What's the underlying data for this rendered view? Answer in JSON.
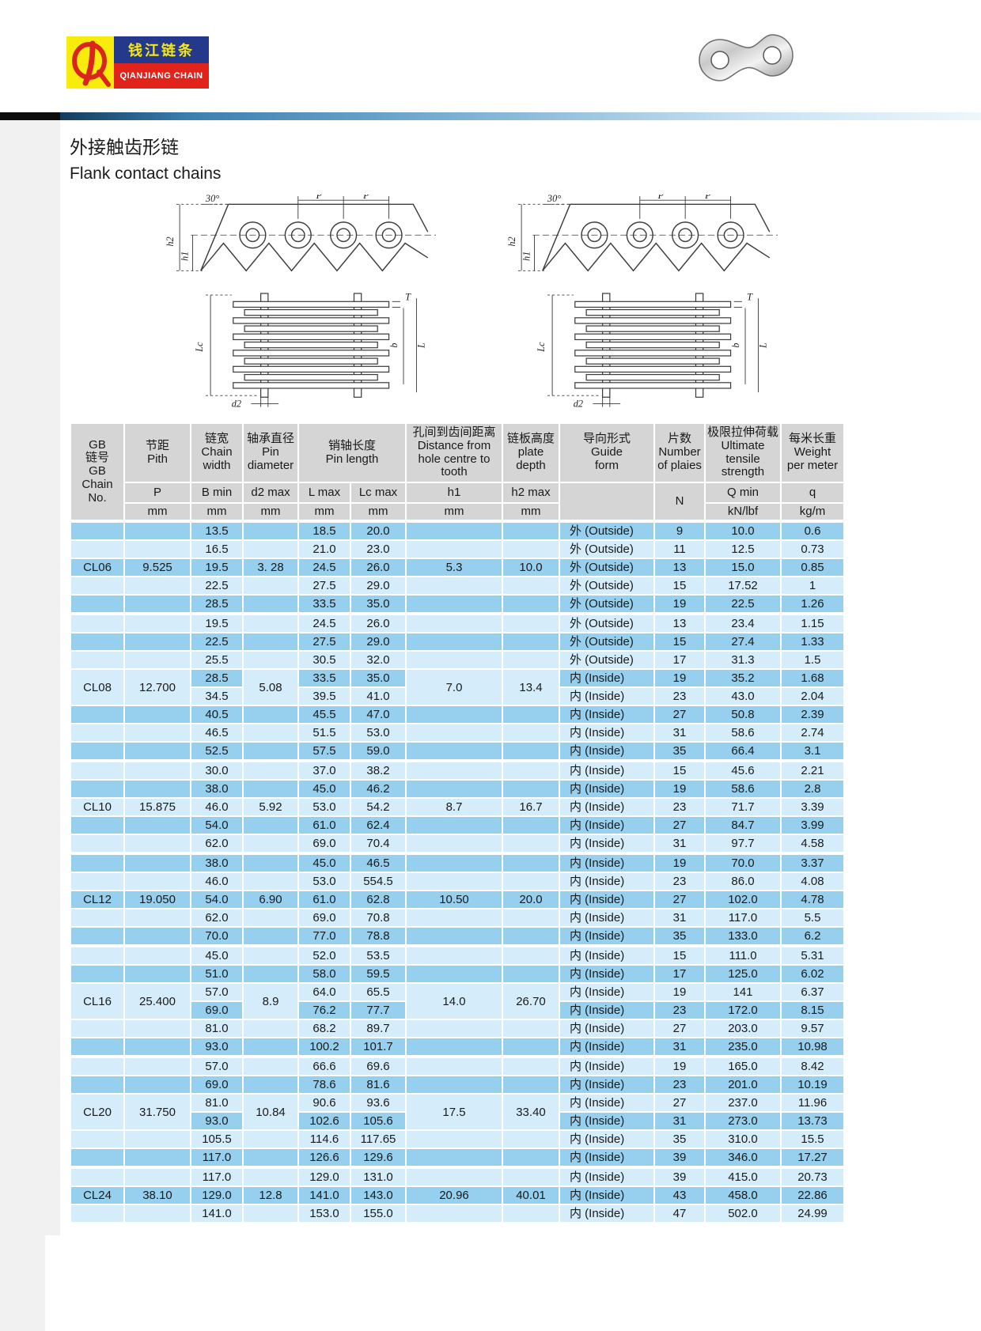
{
  "brand": {
    "monogram": "QL",
    "name_cn": "钱江链条",
    "name_en": "QIANJIANG CHAIN"
  },
  "title": {
    "cn": "外接触齿形链",
    "en": "Flank contact chains"
  },
  "diagram_labels": {
    "angle": "30°",
    "pitch1": "P",
    "pitch2": "P",
    "h1": "h1",
    "h2": "h2",
    "lc": "Lc",
    "t": "T",
    "b": "b",
    "l": "L",
    "d2": "d2"
  },
  "table": {
    "header": {
      "chain_no": "GB\n链号\nGB\nChain\nNo.",
      "pitch": "节距\nPith",
      "chain_width": "链宽\nChain\nwidth",
      "pin_diameter": "轴承直径\nPin\ndiameter",
      "pin_length": "销轴长度\nPin length",
      "distance": "孔间到齿间距离\nDistance from\nhole centre to\ntooth",
      "plate_depth": "链板高度\nplate\ndepth",
      "guide_form": "导向形式\nGuide\nform",
      "plates": "片数\nNumber\nof plaies",
      "tensile": "极限拉伸荷载\nUltimate\ntensile\nstrength",
      "weight": "每米长重\nWeight\nper meter"
    },
    "sub": {
      "p": "P",
      "b_min": "B min",
      "d2_max": "d2 max",
      "l_max": "L max",
      "lc_max": "Lc max",
      "h1": "h1",
      "h2_max": "h2 max",
      "n": "N",
      "q_min": "Q min",
      "q": "q"
    },
    "units": {
      "mm": "mm",
      "kn": "kN/lbf",
      "kg": "kg/m"
    },
    "groups": [
      {
        "chain_no": "CL06",
        "pitch": "9.525",
        "d2": "3. 28",
        "h1": "5.3",
        "h2": "10.0",
        "rows": [
          {
            "b": "13.5",
            "l": "18.5",
            "lc": "20.0",
            "guide": "外 (Outside)",
            "n": "9",
            "q_min": "10.0",
            "q": "0.6"
          },
          {
            "b": "16.5",
            "l": "21.0",
            "lc": "23.0",
            "guide": "外 (Outside)",
            "n": "11",
            "q_min": "12.5",
            "q": "0.73"
          },
          {
            "b": "19.5",
            "l": "24.5",
            "lc": "26.0",
            "guide": "外 (Outside)",
            "n": "13",
            "q_min": "15.0",
            "q": "0.85"
          },
          {
            "b": "22.5",
            "l": "27.5",
            "lc": "29.0",
            "guide": "外 (Outside)",
            "n": "15",
            "q_min": "17.52",
            "q": "1"
          },
          {
            "b": "28.5",
            "l": "33.5",
            "lc": "35.0",
            "guide": "外 (Outside)",
            "n": "19",
            "q_min": "22.5",
            "q": "1.26"
          }
        ]
      },
      {
        "chain_no": "CL08",
        "pitch": "12.700",
        "d2": "5.08",
        "h1": "7.0",
        "h2": "13.4",
        "rows": [
          {
            "b": "19.5",
            "l": "24.5",
            "lc": "26.0",
            "guide": "外 (Outside)",
            "n": "13",
            "q_min": "23.4",
            "q": "1.15"
          },
          {
            "b": "22.5",
            "l": "27.5",
            "lc": "29.0",
            "guide": "外 (Outside)",
            "n": "15",
            "q_min": "27.4",
            "q": "1.33"
          },
          {
            "b": "25.5",
            "l": "30.5",
            "lc": "32.0",
            "guide": "外 (Outside)",
            "n": "17",
            "q_min": "31.3",
            "q": "1.5"
          },
          {
            "b": "28.5",
            "l": "33.5",
            "lc": "35.0",
            "guide": "内 (Inside)",
            "n": "19",
            "q_min": "35.2",
            "q": "1.68"
          },
          {
            "b": "34.5",
            "l": "39.5",
            "lc": "41.0",
            "guide": "内 (Inside)",
            "n": "23",
            "q_min": "43.0",
            "q": "2.04"
          },
          {
            "b": "40.5",
            "l": "45.5",
            "lc": "47.0",
            "guide": "内 (Inside)",
            "n": "27",
            "q_min": "50.8",
            "q": "2.39"
          },
          {
            "b": "46.5",
            "l": "51.5",
            "lc": "53.0",
            "guide": "内 (Inside)",
            "n": "31",
            "q_min": "58.6",
            "q": "2.74"
          },
          {
            "b": "52.5",
            "l": "57.5",
            "lc": "59.0",
            "guide": "内 (Inside)",
            "n": "35",
            "q_min": "66.4",
            "q": "3.1"
          }
        ]
      },
      {
        "chain_no": "CL10",
        "pitch": "15.875",
        "d2": "5.92",
        "h1": "8.7",
        "h2": "16.7",
        "rows": [
          {
            "b": "30.0",
            "l": "37.0",
            "lc": "38.2",
            "guide": "内 (Inside)",
            "n": "15",
            "q_min": "45.6",
            "q": "2.21"
          },
          {
            "b": "38.0",
            "l": "45.0",
            "lc": "46.2",
            "guide": "内 (Inside)",
            "n": "19",
            "q_min": "58.6",
            "q": "2.8"
          },
          {
            "b": "46.0",
            "l": "53.0",
            "lc": "54.2",
            "guide": "内 (Inside)",
            "n": "23",
            "q_min": "71.7",
            "q": "3.39"
          },
          {
            "b": "54.0",
            "l": "61.0",
            "lc": "62.4",
            "guide": "内 (Inside)",
            "n": "27",
            "q_min": "84.7",
            "q": "3.99"
          },
          {
            "b": "62.0",
            "l": "69.0",
            "lc": "70.4",
            "guide": "内 (Inside)",
            "n": "31",
            "q_min": "97.7",
            "q": "4.58"
          }
        ]
      },
      {
        "chain_no": "CL12",
        "pitch": "19.050",
        "d2": "6.90",
        "h1": "10.50",
        "h2": "20.0",
        "rows": [
          {
            "b": "38.0",
            "l": "45.0",
            "lc": "46.5",
            "guide": "内 (Inside)",
            "n": "19",
            "q_min": "70.0",
            "q": "3.37"
          },
          {
            "b": "46.0",
            "l": "53.0",
            "lc": "554.5",
            "guide": "内 (Inside)",
            "n": "23",
            "q_min": "86.0",
            "q": "4.08"
          },
          {
            "b": "54.0",
            "l": "61.0",
            "lc": "62.8",
            "guide": "内 (Inside)",
            "n": "27",
            "q_min": "102.0",
            "q": "4.78"
          },
          {
            "b": "62.0",
            "l": "69.0",
            "lc": "70.8",
            "guide": "内 (Inside)",
            "n": "31",
            "q_min": "117.0",
            "q": "5.5"
          },
          {
            "b": "70.0",
            "l": "77.0",
            "lc": "78.8",
            "guide": "内 (Inside)",
            "n": "35",
            "q_min": "133.0",
            "q": "6.2"
          }
        ]
      },
      {
        "chain_no": "CL16",
        "pitch": "25.400",
        "d2": "8.9",
        "h1": "14.0",
        "h2": "26.70",
        "rows": [
          {
            "b": "45.0",
            "l": "52.0",
            "lc": "53.5",
            "guide": "内 (Inside)",
            "n": "15",
            "q_min": "111.0",
            "q": "5.31"
          },
          {
            "b": "51.0",
            "l": "58.0",
            "lc": "59.5",
            "guide": "内 (Inside)",
            "n": "17",
            "q_min": "125.0",
            "q": "6.02"
          },
          {
            "b": "57.0",
            "l": "64.0",
            "lc": "65.5",
            "guide": "内 (Inside)",
            "n": "19",
            "q_min": "141",
            "q": "6.37"
          },
          {
            "b": "69.0",
            "l": "76.2",
            "lc": "77.7",
            "guide": "内 (Inside)",
            "n": "23",
            "q_min": "172.0",
            "q": "8.15"
          },
          {
            "b": "81.0",
            "l": "68.2",
            "lc": "89.7",
            "guide": "内 (Inside)",
            "n": "27",
            "q_min": "203.0",
            "q": "9.57"
          },
          {
            "b": "93.0",
            "l": "100.2",
            "lc": "101.7",
            "guide": "内 (Inside)",
            "n": "31",
            "q_min": "235.0",
            "q": "10.98"
          }
        ]
      },
      {
        "chain_no": "CL20",
        "pitch": "31.750",
        "d2": "10.84",
        "h1": "17.5",
        "h2": "33.40",
        "rows": [
          {
            "b": "57.0",
            "l": "66.6",
            "lc": "69.6",
            "guide": "内 (Inside)",
            "n": "19",
            "q_min": "165.0",
            "q": "8.42"
          },
          {
            "b": "69.0",
            "l": "78.6",
            "lc": "81.6",
            "guide": "内 (Inside)",
            "n": "23",
            "q_min": "201.0",
            "q": "10.19"
          },
          {
            "b": "81.0",
            "l": "90.6",
            "lc": "93.6",
            "guide": "内 (Inside)",
            "n": "27",
            "q_min": "237.0",
            "q": "11.96"
          },
          {
            "b": "93.0",
            "l": "102.6",
            "lc": "105.6",
            "guide": "内 (Inside)",
            "n": "31",
            "q_min": "273.0",
            "q": "13.73"
          },
          {
            "b": "105.5",
            "l": "114.6",
            "lc": "117.65",
            "guide": "内 (Inside)",
            "n": "35",
            "q_min": "310.0",
            "q": "15.5"
          },
          {
            "b": "117.0",
            "l": "126.6",
            "lc": "129.6",
            "guide": "内 (Inside)",
            "n": "39",
            "q_min": "346.0",
            "q": "17.27"
          }
        ]
      },
      {
        "chain_no": "CL24",
        "pitch": "38.10",
        "d2": "12.8",
        "h1": "20.96",
        "h2": "40.01",
        "rows": [
          {
            "b": "117.0",
            "l": "129.0",
            "lc": "131.0",
            "guide": "内 (Inside)",
            "n": "39",
            "q_min": "415.0",
            "q": "20.73"
          },
          {
            "b": "129.0",
            "l": "141.0",
            "lc": "143.0",
            "guide": "内 (Inside)",
            "n": "43",
            "q_min": "458.0",
            "q": "22.86"
          },
          {
            "b": "141.0",
            "l": "153.0",
            "lc": "155.0",
            "guide": "内 (Inside)",
            "n": "47",
            "q_min": "502.0",
            "q": "24.99"
          }
        ]
      }
    ]
  }
}
